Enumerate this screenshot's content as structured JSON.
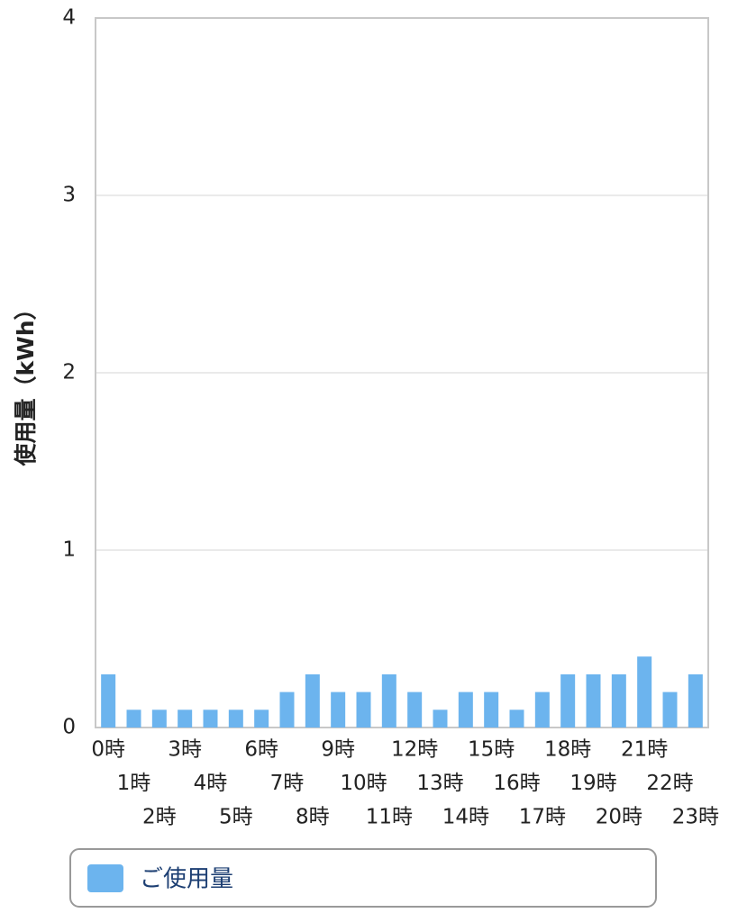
{
  "chart_data": {
    "type": "bar",
    "y_label": "使用量（kWh）",
    "categories": [
      "0時",
      "1時",
      "2時",
      "3時",
      "4時",
      "5時",
      "6時",
      "7時",
      "8時",
      "9時",
      "10時",
      "11時",
      "12時",
      "13時",
      "14時",
      "15時",
      "16時",
      "17時",
      "18時",
      "19時",
      "20時",
      "21時",
      "22時",
      "23時"
    ],
    "series": [
      {
        "name": "ご使用量",
        "color": "#6cb4ee",
        "values": [
          0.3,
          0.1,
          0.1,
          0.1,
          0.1,
          0.1,
          0.1,
          0.2,
          0.3,
          0.2,
          0.2,
          0.3,
          0.2,
          0.1,
          0.2,
          0.2,
          0.1,
          0.2,
          0.3,
          0.3,
          0.3,
          0.4,
          0.2,
          0.3
        ]
      }
    ],
    "ylim": [
      0,
      4
    ],
    "yticks": [
      0,
      1,
      2,
      3,
      4
    ],
    "grid": true,
    "legend": "bottom"
  }
}
